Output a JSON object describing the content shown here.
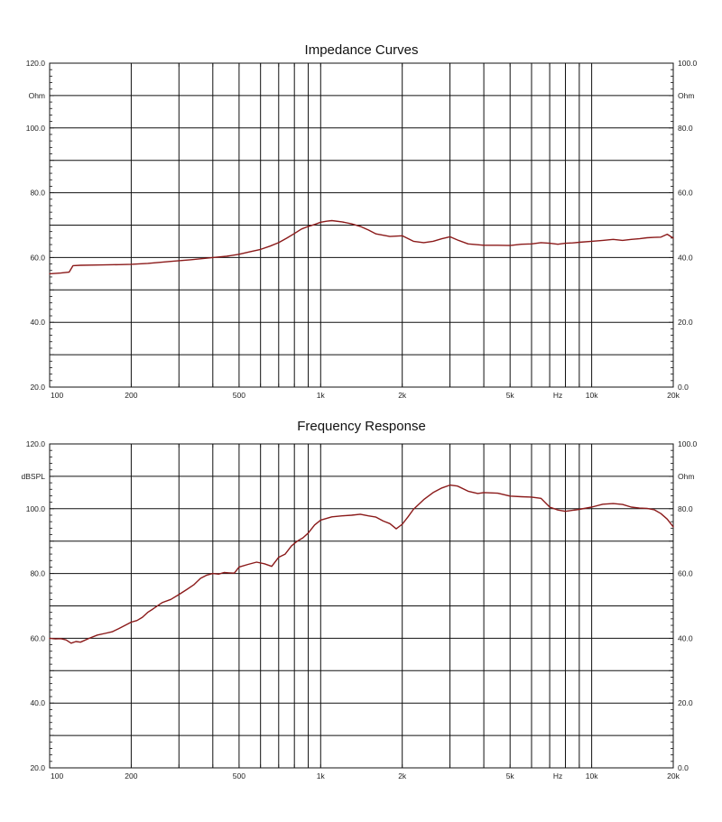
{
  "colors": {
    "curve": "#8b1a1a",
    "grid": "#111111",
    "background": "#ffffff"
  },
  "chart_data": [
    {
      "type": "line",
      "title": "Impedance Curves",
      "x_scale": "log",
      "xlim": [
        100,
        20000
      ],
      "ylim": [
        20,
        120
      ],
      "right_ylim": [
        0,
        100
      ],
      "left_unit": "Ohm",
      "right_unit": "Ohm",
      "x_unit": "Hz",
      "x_tick_labels": [
        "100",
        "200",
        "500",
        "1k",
        "2k",
        "5k",
        "10k",
        "20k"
      ],
      "left_tick_labels": [
        "120.0",
        "100.0",
        "80.0",
        "60.0",
        "40.0",
        "20.0"
      ],
      "right_tick_labels": [
        "100.0",
        "80.0",
        "60.0",
        "40.0",
        "20.0",
        "0.0"
      ],
      "grid": true,
      "series": [
        {
          "x": [
            100,
            110,
            118,
            122,
            130,
            150,
            180,
            200,
            230,
            280,
            330,
            400,
            450,
            500,
            550,
            600,
            650,
            700,
            750,
            800,
            850,
            900,
            950,
            1000,
            1050,
            1100,
            1200,
            1300,
            1400,
            1500,
            1600,
            1800,
            2000,
            2200,
            2400,
            2600,
            2800,
            3000,
            3200,
            3500,
            4000,
            4500,
            5000,
            5500,
            6000,
            6500,
            7000,
            7500,
            8000,
            8500,
            9000,
            10000,
            11000,
            12000,
            13000,
            14000,
            15000,
            16000,
            17000,
            18000,
            19000,
            20000
          ],
          "y": [
            55,
            55.2,
            55.5,
            57.5,
            57.6,
            57.7,
            57.8,
            57.9,
            58.2,
            58.8,
            59.3,
            60,
            60.4,
            61,
            61.8,
            62.5,
            63.5,
            64.6,
            66,
            67.4,
            68.8,
            69.6,
            70.2,
            70.9,
            71.2,
            71.4,
            71,
            70.4,
            69.6,
            68.5,
            67.3,
            66.5,
            66.7,
            65,
            64.6,
            65,
            65.8,
            66.4,
            65.4,
            64.2,
            63.8,
            63.8,
            63.7,
            64.1,
            64.2,
            64.6,
            64.4,
            64.1,
            64.4,
            64.5,
            64.7,
            65,
            65.3,
            65.6,
            65.3,
            65.6,
            65.8,
            66.1,
            66.2,
            66.3,
            67.2,
            66
          ]
        }
      ]
    },
    {
      "type": "line",
      "title": "Frequency Response",
      "x_scale": "log",
      "xlim": [
        100,
        20000
      ],
      "ylim": [
        20,
        120
      ],
      "right_ylim": [
        0,
        100
      ],
      "left_unit": "dBSPL",
      "right_unit": "Ohm",
      "x_unit": "Hz",
      "x_tick_labels": [
        "100",
        "200",
        "500",
        "1k",
        "2k",
        "5k",
        "10k",
        "20k"
      ],
      "left_tick_labels": [
        "120.0",
        "100.0",
        "80.0",
        "60.0",
        "40.0",
        "20.0"
      ],
      "right_tick_labels": [
        "100.0",
        "80.0",
        "60.0",
        "40.0",
        "20.0",
        "0.0"
      ],
      "grid": true,
      "series": [
        {
          "x": [
            100,
            105,
            110,
            115,
            120,
            125,
            130,
            140,
            150,
            160,
            170,
            180,
            190,
            200,
            210,
            220,
            230,
            240,
            260,
            280,
            300,
            320,
            340,
            360,
            380,
            400,
            420,
            440,
            460,
            480,
            500,
            540,
            580,
            620,
            660,
            700,
            740,
            780,
            820,
            860,
            900,
            950,
            1000,
            1100,
            1200,
            1300,
            1400,
            1500,
            1600,
            1700,
            1800,
            1900,
            2000,
            2100,
            2200,
            2400,
            2600,
            2800,
            3000,
            3200,
            3500,
            3800,
            4000,
            4500,
            5000,
            5500,
            6000,
            6500,
            7000,
            7500,
            8000,
            9000,
            10000,
            11000,
            12000,
            13000,
            14000,
            15000,
            16000,
            17000,
            18000,
            19000,
            20000
          ],
          "y": [
            60,
            59.8,
            59.9,
            59.5,
            58.5,
            59,
            58.8,
            60,
            61,
            61.5,
            62,
            63,
            64,
            65,
            65.5,
            66.5,
            68,
            69,
            71,
            72,
            73.5,
            75,
            76.5,
            78.5,
            79.5,
            80,
            79.8,
            80.3,
            80.2,
            80.1,
            82,
            82.8,
            83.5,
            83,
            82.2,
            85,
            86,
            88.5,
            90,
            91,
            92.5,
            95,
            96.5,
            97.5,
            97.8,
            98,
            98.3,
            97.8,
            97.4,
            96.2,
            95.4,
            93.8,
            95.2,
            97.5,
            99.8,
            102.8,
            105,
            106.4,
            107.3,
            107,
            105.4,
            104.7,
            105,
            104.8,
            103.9,
            103.7,
            103.6,
            103.2,
            100.5,
            99.6,
            99.2,
            99.8,
            100.5,
            101.4,
            101.6,
            101.3,
            100.5,
            100.2,
            100.1,
            99.7,
            98.5,
            96.8,
            94.4
          ]
        }
      ]
    }
  ]
}
